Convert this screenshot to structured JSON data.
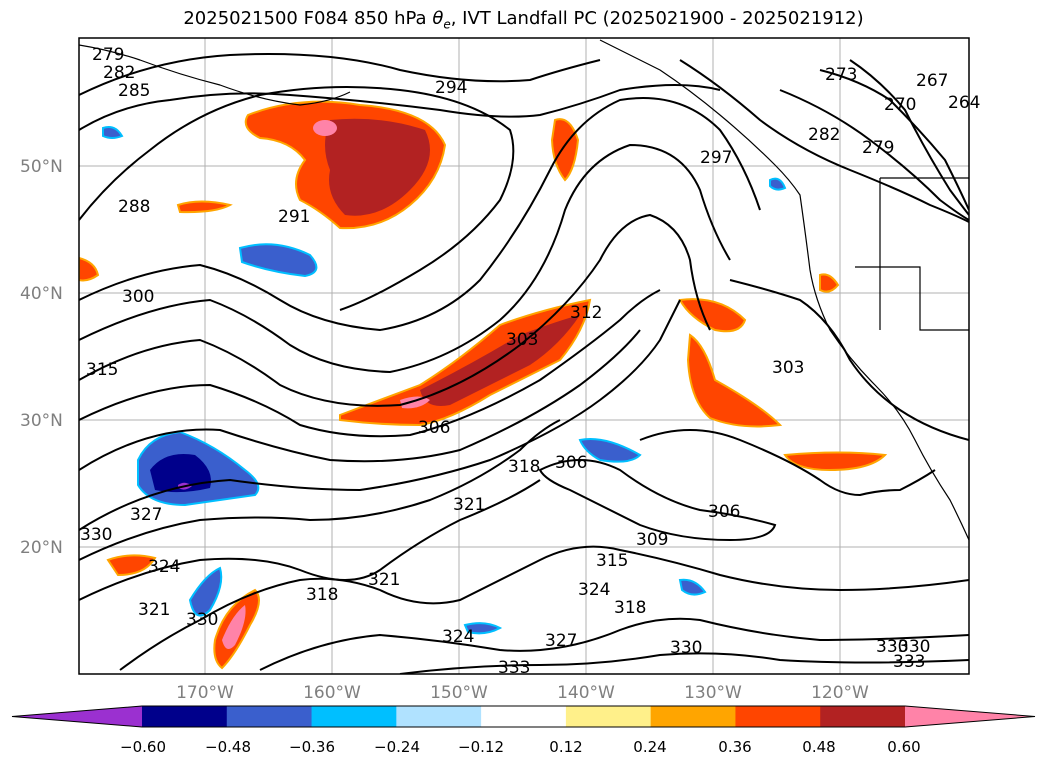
{
  "title_main": "2025021500 F084 850 hPa ",
  "title_theta": "θ",
  "title_sub": "e",
  "title_rest": ", IVT Landfall PC (2025021900 - 2025021912)",
  "lat_labels": [
    "50°N",
    "40°N",
    "30°N",
    "20°N"
  ],
  "lon_labels": [
    "170°W",
    "160°W",
    "150°W",
    "140°W",
    "130°W",
    "120°W"
  ],
  "colorbar": {
    "colors": [
      "#9b30d0",
      "#00008b",
      "#3a5fcd",
      "#00bfff",
      "#b0e2ff",
      "#ffffff",
      "#fff08a",
      "#ffa500",
      "#ff4500",
      "#b22222",
      "#ff83a8"
    ],
    "ticks": [
      "−0.60",
      "−0.48",
      "−0.36",
      "−0.24",
      "−0.12",
      "0.12",
      "0.24",
      "0.36",
      "0.48",
      "0.60"
    ]
  },
  "contour_labels": [
    "279",
    "282",
    "285",
    "288",
    "294",
    "291",
    "300",
    "315",
    "330",
    "327",
    "324",
    "321",
    "330",
    "318",
    "321",
    "303",
    "306",
    "312",
    "318",
    "321",
    "306",
    "306",
    "309",
    "315",
    "324",
    "318",
    "324",
    "327",
    "330",
    "333",
    "303",
    "297",
    "273",
    "270",
    "267",
    "264",
    "282",
    "279",
    "333",
    "330",
    "330"
  ]
}
